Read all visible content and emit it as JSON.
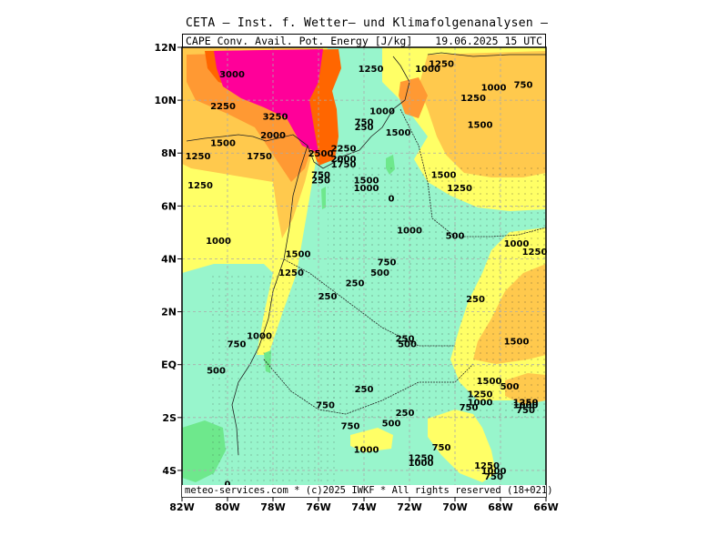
{
  "header": {
    "line1": "CETA — Inst. f. Wetter— und Klimafolgenanalysen —",
    "parameter": "CAPE Conv. Avail. Pot. Energy [J/kg]",
    "valid": "19.06.2025 15 UTC"
  },
  "footer": {
    "text": "meteo-services.com * (c)2025 IWKF * All rights reserved (18+021)"
  },
  "axes": {
    "lon_range": [
      -82,
      -66
    ],
    "lat_range": [
      -5,
      12
    ],
    "x_ticks": [
      {
        "value": -82,
        "label": "82W"
      },
      {
        "value": -80,
        "label": "80W"
      },
      {
        "value": -78,
        "label": "78W"
      },
      {
        "value": -76,
        "label": "76W"
      },
      {
        "value": -74,
        "label": "74W"
      },
      {
        "value": -72,
        "label": "72W"
      },
      {
        "value": -70,
        "label": "70W"
      },
      {
        "value": -68,
        "label": "68W"
      },
      {
        "value": -66,
        "label": "66W"
      }
    ],
    "y_ticks": [
      {
        "value": 12,
        "label": "12N"
      },
      {
        "value": 10,
        "label": "10N"
      },
      {
        "value": 8,
        "label": "8N"
      },
      {
        "value": 6,
        "label": "6N"
      },
      {
        "value": 4,
        "label": "4N"
      },
      {
        "value": 2,
        "label": "2N"
      },
      {
        "value": 0,
        "label": "EQ"
      },
      {
        "value": -2,
        "label": "2S"
      },
      {
        "value": -4,
        "label": "4S"
      }
    ]
  },
  "colors": {
    "c0": "#6ee88c",
    "c250": "#98f5cc",
    "c1000": "#ffff66",
    "c1500": "#ffc94d",
    "c2000": "#ff9933",
    "c2500": "#ff6600",
    "c3000": "#ff0099",
    "gridline": "#aaaaaa"
  },
  "contour_labels": [
    {
      "lon": -79.8,
      "lat": 11.0,
      "text": "3000"
    },
    {
      "lon": -80.2,
      "lat": 9.8,
      "text": "2250"
    },
    {
      "lon": -77.9,
      "lat": 9.4,
      "text": "3250"
    },
    {
      "lon": -78.0,
      "lat": 8.7,
      "text": "2000"
    },
    {
      "lon": -80.2,
      "lat": 8.4,
      "text": "1500"
    },
    {
      "lon": -81.3,
      "lat": 7.9,
      "text": "1250"
    },
    {
      "lon": -78.6,
      "lat": 7.9,
      "text": "1750"
    },
    {
      "lon": -81.2,
      "lat": 6.8,
      "text": "1250"
    },
    {
      "lon": -75.9,
      "lat": 8.0,
      "text": "2500"
    },
    {
      "lon": -74.9,
      "lat": 8.2,
      "text": "2250"
    },
    {
      "lon": -74.9,
      "lat": 7.8,
      "text": "2000"
    },
    {
      "lon": -74.9,
      "lat": 7.6,
      "text": "1750"
    },
    {
      "lon": -75.9,
      "lat": 7.2,
      "text": "750"
    },
    {
      "lon": -75.9,
      "lat": 7.0,
      "text": "250"
    },
    {
      "lon": -73.9,
      "lat": 7.0,
      "text": "1500"
    },
    {
      "lon": -73.9,
      "lat": 6.7,
      "text": "1000"
    },
    {
      "lon": -72.8,
      "lat": 6.3,
      "text": "0"
    },
    {
      "lon": -73.7,
      "lat": 11.2,
      "text": "1250"
    },
    {
      "lon": -71.2,
      "lat": 11.2,
      "text": "1000"
    },
    {
      "lon": -70.6,
      "lat": 11.4,
      "text": "1250"
    },
    {
      "lon": -68.3,
      "lat": 10.5,
      "text": "1000"
    },
    {
      "lon": -67.0,
      "lat": 10.6,
      "text": "750"
    },
    {
      "lon": -73.2,
      "lat": 9.6,
      "text": "1000"
    },
    {
      "lon": -69.2,
      "lat": 10.1,
      "text": "1250"
    },
    {
      "lon": -74.0,
      "lat": 9.2,
      "text": "750"
    },
    {
      "lon": -74.0,
      "lat": 9.0,
      "text": "250"
    },
    {
      "lon": -72.5,
      "lat": 8.8,
      "text": "1500"
    },
    {
      "lon": -68.9,
      "lat": 9.1,
      "text": "1500"
    },
    {
      "lon": -70.5,
      "lat": 7.2,
      "text": "1500"
    },
    {
      "lon": -69.8,
      "lat": 6.7,
      "text": "1250"
    },
    {
      "lon": -72.0,
      "lat": 5.1,
      "text": "1000"
    },
    {
      "lon": -70.0,
      "lat": 4.9,
      "text": "500"
    },
    {
      "lon": -67.3,
      "lat": 4.6,
      "text": "1000"
    },
    {
      "lon": -66.5,
      "lat": 4.3,
      "text": "1250"
    },
    {
      "lon": -80.4,
      "lat": 4.7,
      "text": "1000"
    },
    {
      "lon": -76.9,
      "lat": 4.2,
      "text": "1500"
    },
    {
      "lon": -77.2,
      "lat": 3.5,
      "text": "1250"
    },
    {
      "lon": -73.0,
      "lat": 3.9,
      "text": "750"
    },
    {
      "lon": -73.3,
      "lat": 3.5,
      "text": "500"
    },
    {
      "lon": -74.4,
      "lat": 3.1,
      "text": "250"
    },
    {
      "lon": -75.6,
      "lat": 2.6,
      "text": "250"
    },
    {
      "lon": -69.1,
      "lat": 2.5,
      "text": "250"
    },
    {
      "lon": -78.6,
      "lat": 1.1,
      "text": "1000"
    },
    {
      "lon": -79.6,
      "lat": 0.8,
      "text": "750"
    },
    {
      "lon": -72.2,
      "lat": 1.0,
      "text": "250"
    },
    {
      "lon": -72.1,
      "lat": 0.8,
      "text": "500"
    },
    {
      "lon": -67.3,
      "lat": 0.9,
      "text": "1500"
    },
    {
      "lon": -80.5,
      "lat": -0.2,
      "text": "500"
    },
    {
      "lon": -68.5,
      "lat": -0.6,
      "text": "1500"
    },
    {
      "lon": -67.6,
      "lat": -0.8,
      "text": "500"
    },
    {
      "lon": -74.0,
      "lat": -0.9,
      "text": "250"
    },
    {
      "lon": -68.9,
      "lat": -1.1,
      "text": "1250"
    },
    {
      "lon": -68.9,
      "lat": -1.4,
      "text": "1000"
    },
    {
      "lon": -69.4,
      "lat": -1.6,
      "text": "750"
    },
    {
      "lon": -66.9,
      "lat": -1.4,
      "text": "1250"
    },
    {
      "lon": -66.9,
      "lat": -1.5,
      "text": "1000"
    },
    {
      "lon": -66.9,
      "lat": -1.7,
      "text": "750"
    },
    {
      "lon": -75.7,
      "lat": -1.5,
      "text": "750"
    },
    {
      "lon": -72.2,
      "lat": -1.8,
      "text": "250"
    },
    {
      "lon": -72.8,
      "lat": -2.2,
      "text": "500"
    },
    {
      "lon": -74.6,
      "lat": -2.3,
      "text": "750"
    },
    {
      "lon": -70.6,
      "lat": -3.1,
      "text": "750"
    },
    {
      "lon": -73.9,
      "lat": -3.2,
      "text": "1000"
    },
    {
      "lon": -71.5,
      "lat": -3.5,
      "text": "1250"
    },
    {
      "lon": -71.5,
      "lat": -3.7,
      "text": "1000"
    },
    {
      "lon": -68.6,
      "lat": -3.8,
      "text": "1250"
    },
    {
      "lon": -68.3,
      "lat": -4.0,
      "text": "1000"
    },
    {
      "lon": -68.3,
      "lat": -4.2,
      "text": "750"
    },
    {
      "lon": -80.0,
      "lat": -4.5,
      "text": "0"
    }
  ]
}
